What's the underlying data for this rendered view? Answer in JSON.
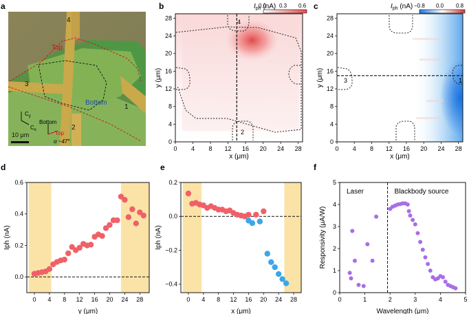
{
  "panels": {
    "a": {
      "label": "a",
      "top_label": "Top",
      "bottom_label": "Bottom",
      "scale_label": "10 μm",
      "electrodes": [
        "1",
        "2",
        "3",
        "4"
      ],
      "axis_labels": {
        "cx": "C",
        "cx_sub": "x",
        "cy": "C",
        "cy_sub": "y"
      },
      "orientation": {
        "bottom": "Bottom",
        "top": "Top",
        "angle": "α ~47°"
      }
    },
    "b": {
      "label": "b",
      "cbar_title_main": "I",
      "cbar_title_sub": "ph",
      "cbar_title_unit": " (nA)",
      "cbar_ticks": [
        "0.0",
        "0.3",
        "0.6"
      ],
      "cbar_colors": [
        "#ffffff",
        "#e84a4a"
      ],
      "electrodes": [
        "2",
        "4"
      ]
    },
    "c": {
      "label": "c",
      "cbar_title_main": "I",
      "cbar_title_sub": "ph",
      "cbar_title_unit": " (nA)",
      "cbar_ticks": [
        "−0.8",
        "0.0",
        "0.8"
      ],
      "cbar_colors": [
        "#1e7be6",
        "#ffffff",
        "#d13a3a"
      ],
      "electrodes": [
        "1",
        "3"
      ]
    },
    "d": {
      "label": "d"
    },
    "e": {
      "label": "e"
    },
    "f": {
      "label": "f"
    }
  },
  "chart_data": [
    {
      "id": "b",
      "type": "heatmap",
      "xlabel": "x (μm)",
      "ylabel": "y (μm)",
      "xlim": [
        0,
        29
      ],
      "ylim": [
        0,
        29
      ],
      "xticks": [
        0,
        4,
        8,
        12,
        16,
        20,
        24,
        28
      ],
      "yticks": [
        0,
        4,
        8,
        12,
        16,
        20,
        24,
        28
      ],
      "vmin": 0.0,
      "vmax": 0.6,
      "hotspot": {
        "x": 17.5,
        "y": 23,
        "value": 0.6
      },
      "cut_x": 14,
      "colorbar_label": "Iph (nA)"
    },
    {
      "id": "c",
      "type": "heatmap",
      "xlabel": "x (μm)",
      "ylabel": "y (μm)",
      "xlim": [
        0,
        29
      ],
      "ylim": [
        0,
        29
      ],
      "xticks": [
        0,
        4,
        8,
        12,
        16,
        20,
        24,
        28
      ],
      "yticks": [
        0,
        4,
        8,
        12,
        16,
        20,
        24,
        28
      ],
      "vmin": -0.8,
      "vmax": 0.8,
      "hotspot": {
        "x": 28.5,
        "y": 10,
        "value": -0.8
      },
      "cut_y": 15,
      "colorbar_label": "Iph (nA)"
    },
    {
      "id": "d",
      "type": "scatter",
      "xlabel": "y (μm)",
      "ylabel": "Iph (nA)",
      "xlim": [
        -2,
        30.5
      ],
      "ylim": [
        -0.1,
        0.6
      ],
      "xticks": [
        0,
        4,
        8,
        12,
        16,
        20,
        24,
        28
      ],
      "yticks": [
        0.0,
        0.2,
        0.4,
        0.6
      ],
      "ytick_labels": [
        "0.0",
        "0.2",
        "0.4",
        "0.6"
      ],
      "shaded": [
        [
          -1.5,
          4.5
        ],
        [
          23,
          30.5
        ]
      ],
      "hline": 0,
      "color": "#f06068",
      "points": [
        [
          0,
          0.02
        ],
        [
          1,
          0.025
        ],
        [
          2,
          0.03
        ],
        [
          3,
          0.035
        ],
        [
          4,
          0.05
        ],
        [
          5,
          0.08
        ],
        [
          6,
          0.095
        ],
        [
          7,
          0.105
        ],
        [
          8,
          0.11
        ],
        [
          9,
          0.15
        ],
        [
          10,
          0.19
        ],
        [
          11,
          0.17
        ],
        [
          12,
          0.185
        ],
        [
          13,
          0.21
        ],
        [
          14,
          0.2
        ],
        [
          15,
          0.205
        ],
        [
          16,
          0.255
        ],
        [
          17,
          0.27
        ],
        [
          18,
          0.26
        ],
        [
          19,
          0.31
        ],
        [
          20,
          0.33
        ],
        [
          21,
          0.36
        ],
        [
          22,
          0.36
        ],
        [
          23,
          0.51
        ],
        [
          24,
          0.49
        ],
        [
          25,
          0.38
        ],
        [
          26,
          0.43
        ],
        [
          27,
          0.34
        ],
        [
          28,
          0.41
        ],
        [
          29,
          0.39
        ]
      ]
    },
    {
      "id": "e",
      "type": "scatter",
      "xlabel": "x (μm)",
      "ylabel": "Iph (nA)",
      "xlim": [
        -2,
        30
      ],
      "ylim": [
        -0.45,
        0.2
      ],
      "xticks": [
        0,
        4,
        8,
        12,
        16,
        20,
        24,
        28
      ],
      "yticks": [
        -0.4,
        -0.2,
        0.0,
        0.2
      ],
      "ytick_labels": [
        "−0.4",
        "−0.2",
        "0.0",
        "0.2"
      ],
      "shaded": [
        [
          -1.5,
          3.5
        ],
        [
          25.5,
          30
        ]
      ],
      "hline": 0,
      "series": [
        {
          "name": "positive",
          "color": "#f06068",
          "points": [
            [
              0,
              0.135
            ],
            [
              1,
              0.075
            ],
            [
              2,
              0.08
            ],
            [
              3,
              0.07
            ],
            [
              4,
              0.065
            ],
            [
              5,
              0.05
            ],
            [
              6,
              0.06
            ],
            [
              7,
              0.05
            ],
            [
              8,
              0.04
            ],
            [
              9,
              0.04
            ],
            [
              10,
              0.03
            ],
            [
              11,
              0.035
            ],
            [
              12,
              0.02
            ],
            [
              13,
              0.01
            ],
            [
              14,
              0.005
            ],
            [
              15,
              0.0
            ],
            [
              16,
              0.01
            ],
            [
              18,
              0.01
            ],
            [
              20,
              0.03
            ]
          ]
        },
        {
          "name": "negative",
          "color": "#3aa7e8",
          "points": [
            [
              16,
              -0.025
            ],
            [
              17,
              -0.04
            ],
            [
              19,
              -0.03
            ],
            [
              21,
              -0.22
            ],
            [
              22,
              -0.27
            ],
            [
              23,
              -0.3
            ],
            [
              24,
              -0.34
            ],
            [
              25,
              -0.37
            ],
            [
              26,
              -0.395
            ]
          ]
        }
      ]
    },
    {
      "id": "f",
      "type": "scatter",
      "xlabel": "Wavelength (μm)",
      "ylabel": "Responsivity (μA/W)",
      "xlim": [
        0,
        5
      ],
      "ylim": [
        0,
        5
      ],
      "xticks": [
        0,
        1,
        2,
        3,
        4,
        5
      ],
      "yticks": [
        0,
        1,
        2,
        3,
        4,
        5
      ],
      "vline": 1.9,
      "annotations": [
        "Laser",
        "Blackbody source"
      ],
      "color": "#a86ee6",
      "points": [
        [
          0.4,
          0.9
        ],
        [
          0.45,
          0.65
        ],
        [
          0.5,
          2.8
        ],
        [
          0.6,
          1.45
        ],
        [
          0.75,
          0.35
        ],
        [
          0.95,
          0.3
        ],
        [
          1.1,
          2.2
        ],
        [
          1.3,
          1.45
        ],
        [
          1.45,
          3.45
        ],
        [
          2.0,
          3.8
        ],
        [
          2.1,
          3.9
        ],
        [
          2.2,
          3.95
        ],
        [
          2.3,
          4.0
        ],
        [
          2.4,
          4.02
        ],
        [
          2.5,
          4.05
        ],
        [
          2.6,
          4.05
        ],
        [
          2.7,
          4.0
        ],
        [
          2.75,
          3.7
        ],
        [
          2.8,
          3.5
        ],
        [
          2.9,
          3.3
        ],
        [
          3.0,
          3.1
        ],
        [
          3.1,
          2.7
        ],
        [
          3.2,
          2.3
        ],
        [
          3.3,
          1.95
        ],
        [
          3.4,
          1.6
        ],
        [
          3.5,
          1.3
        ],
        [
          3.6,
          1.0
        ],
        [
          3.7,
          0.7
        ],
        [
          3.8,
          0.6
        ],
        [
          3.9,
          0.65
        ],
        [
          4.0,
          0.75
        ],
        [
          4.1,
          0.7
        ],
        [
          4.2,
          0.5
        ],
        [
          4.3,
          0.35
        ],
        [
          4.4,
          0.3
        ],
        [
          4.5,
          0.25
        ],
        [
          4.6,
          0.2
        ]
      ]
    }
  ]
}
